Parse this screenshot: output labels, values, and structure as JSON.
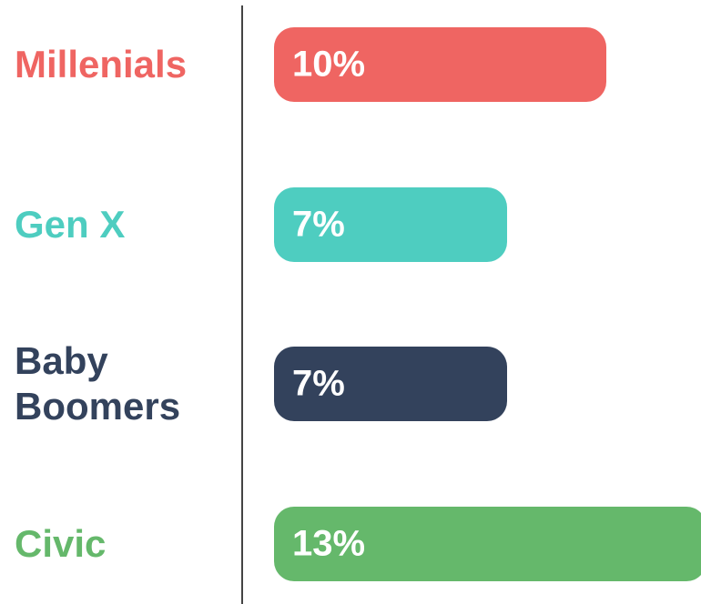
{
  "chart_data": {
    "type": "bar",
    "orientation": "horizontal",
    "categories": [
      "Millenials",
      "Gen X",
      "Baby Boomers",
      "Civic"
    ],
    "values": [
      10,
      7,
      7,
      13
    ],
    "value_labels": [
      "10%",
      "7%",
      "7%",
      "13%"
    ],
    "colors": [
      "#ef6562",
      "#4ecdc0",
      "#33425c",
      "#65b86b"
    ]
  }
}
